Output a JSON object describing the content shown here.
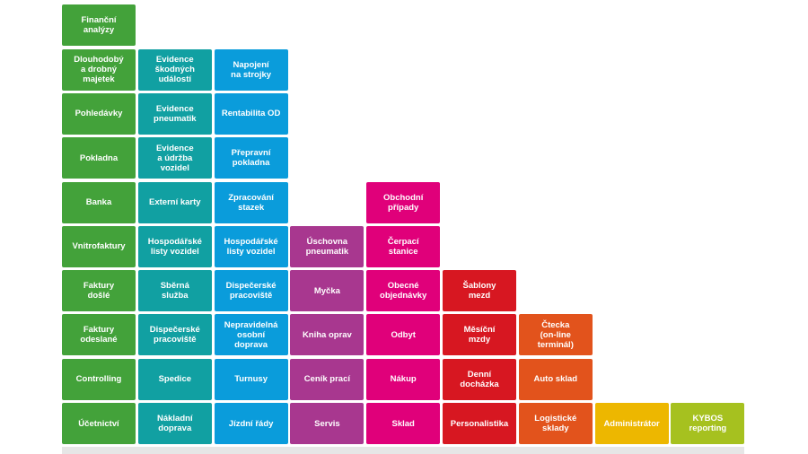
{
  "palette": {
    "green": "#43a23a",
    "teal": "#11a0a2",
    "blue": "#0a9cdb",
    "purple": "#a8378f",
    "magenta": "#e0007a",
    "red": "#d71721",
    "orange": "#e2531c",
    "yellow": "#edb700",
    "lime": "#a6c11f"
  },
  "columns": [
    {
      "id": "financni",
      "color": "green",
      "tiles": [
        "Finanční\nanalýzy",
        "Dlouhodobý\na drobný\nmajetek",
        "Pohledávky",
        "Pokladna",
        "Banka",
        "Vnitrofaktury",
        "Faktury\ndošlé",
        "Faktury\nodeslané",
        "Controlling",
        "Účetnictví"
      ]
    },
    {
      "id": "vozidla",
      "color": "teal",
      "tiles": [
        "Evidence\nškodných\nudálostí",
        "Evidence\npneumatik",
        "Evidence\na údržba\nvozidel",
        "Externí karty",
        "Hospodářské\nlisty vozidel",
        "Sběrná\nslužba",
        "Dispečerské\npracoviště",
        "Spedice",
        "Nákladní\ndoprava"
      ]
    },
    {
      "id": "doprava",
      "color": "blue",
      "tiles": [
        "Napojení\nna strojky",
        "Rentabilita OD",
        "Přepravní\npokladna",
        "Zpracování\nstazek",
        "Hospodářské\nlisty vozidel",
        "Dispečerské\npracoviště",
        "Nepravidelná\nosobní\ndoprava",
        "Turnusy",
        "Jízdní řády"
      ]
    },
    {
      "id": "servis",
      "color": "purple",
      "tiles": [
        "Úschovna\npneumatik",
        "Myčka",
        "Kniha oprav",
        "Ceník prací",
        "Servis"
      ]
    },
    {
      "id": "sklad",
      "color": "magenta",
      "tiles": [
        "Obchodní\npřípady",
        "Čerpací\nstanice",
        "Obecné\nobjednávky",
        "Odbyt",
        "Nákup",
        "Sklad"
      ]
    },
    {
      "id": "personalistika",
      "color": "red",
      "tiles": [
        "Šablony\nmezd",
        "Měsíční\nmzdy",
        "Denní\ndocházka",
        "Personalistika"
      ]
    },
    {
      "id": "logistika",
      "color": "orange",
      "tiles": [
        "Čtecka\n(on-line\nterminál)",
        "Auto sklad",
        "Logistické\nsklady"
      ]
    },
    {
      "id": "administrator",
      "color": "yellow",
      "tiles": [
        "Administrátor"
      ]
    },
    {
      "id": "reporting",
      "color": "lime",
      "tiles": [
        "KYBOS\nreporting"
      ]
    }
  ]
}
